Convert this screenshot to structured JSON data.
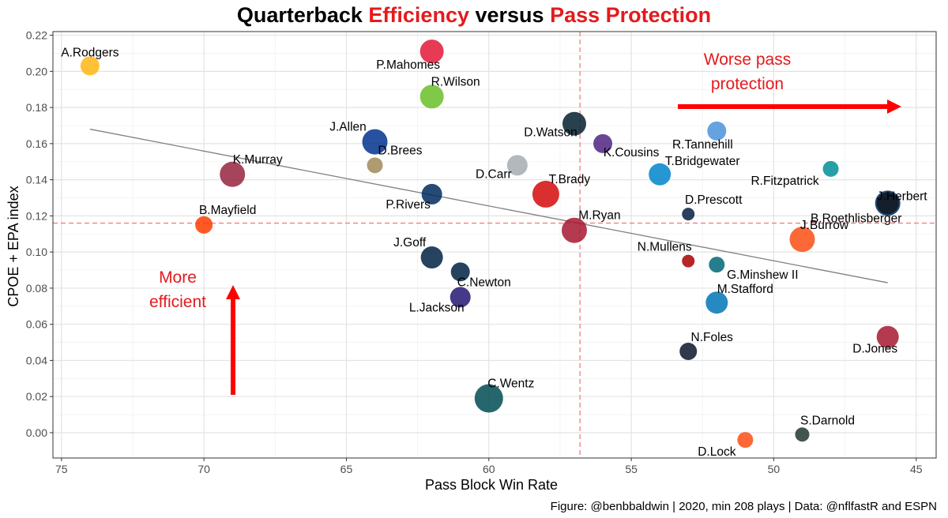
{
  "title": {
    "part1": "Quarterback ",
    "part2": "Efficiency",
    "part3": " versus ",
    "part4": "Pass Protection"
  },
  "caption": "Figure: @benbbaldwin | 2020, min 208 plays | Data: @nflfastR and ESPN",
  "chart_data": {
    "type": "scatter",
    "title": "Quarterback Efficiency versus Pass Protection",
    "xlabel": "Pass Block Win Rate",
    "ylabel": "CPOE + EPA index",
    "x_reversed": true,
    "xlim": [
      75.3,
      44.3
    ],
    "ylim": [
      -0.014,
      0.222
    ],
    "x_ticks": [
      75,
      70,
      65,
      60,
      55,
      50,
      45
    ],
    "y_ticks": [
      "0.00",
      "0.02",
      "0.04",
      "0.06",
      "0.08",
      "0.10",
      "0.12",
      "0.14",
      "0.16",
      "0.18",
      "0.20",
      "0.22"
    ],
    "grid": true,
    "ref_lines": {
      "vertical_x": 56.8,
      "horizontal_y": 0.116,
      "color": "#f08080"
    },
    "trend_line": {
      "x": [
        74,
        46
      ],
      "y": [
        0.168,
        0.083
      ],
      "color": "#808080"
    },
    "points": [
      {
        "name": "A.Rodgers",
        "x": 74.0,
        "y": 0.203,
        "r": 12,
        "color": "#ffb612",
        "label_dx": 0,
        "label_dy": -12
      },
      {
        "name": "P.Mahomes",
        "x": 62.0,
        "y": 0.211,
        "r": 15,
        "color": "#e31837",
        "label_dx": -30,
        "label_dy": 22
      },
      {
        "name": "R.Wilson",
        "x": 62.0,
        "y": 0.186,
        "r": 15,
        "color": "#69be28",
        "label_dx": 30,
        "label_dy": -14
      },
      {
        "name": "J.Allen",
        "x": 64.0,
        "y": 0.161,
        "r": 16,
        "color": "#00338d",
        "label_dx": -34,
        "label_dy": -14
      },
      {
        "name": "D.Brees",
        "x": 64.0,
        "y": 0.148,
        "r": 10,
        "color": "#9f8958",
        "label_dx": 32,
        "label_dy": -14
      },
      {
        "name": "K.Murray",
        "x": 69.0,
        "y": 0.143,
        "r": 16,
        "color": "#97233f",
        "label_dx": 32,
        "label_dy": -14
      },
      {
        "name": "B.Mayfield",
        "x": 70.0,
        "y": 0.115,
        "r": 11,
        "color": "#ff3c00",
        "label_dx": 30,
        "label_dy": -14
      },
      {
        "name": "D.Watson",
        "x": 57.0,
        "y": 0.171,
        "r": 15,
        "color": "#03202f",
        "label_dx": -30,
        "label_dy": 16
      },
      {
        "name": "K.Cousins",
        "x": 56.0,
        "y": 0.16,
        "r": 12,
        "color": "#4f2683",
        "label_dx": 36,
        "label_dy": 16
      },
      {
        "name": "D.Carr",
        "x": 59.0,
        "y": 0.148,
        "r": 13,
        "color": "#a5acaf",
        "label_dx": -30,
        "label_dy": 16
      },
      {
        "name": "T.Brady",
        "x": 58.0,
        "y": 0.132,
        "r": 17,
        "color": "#d50a0a",
        "label_dx": 30,
        "label_dy": -14
      },
      {
        "name": "P.Rivers",
        "x": 62.0,
        "y": 0.132,
        "r": 13,
        "color": "#002c5f",
        "label_dx": -30,
        "label_dy": 18
      },
      {
        "name": "M.Ryan",
        "x": 57.0,
        "y": 0.112,
        "r": 16,
        "color": "#a71930",
        "label_dx": 32,
        "label_dy": -14
      },
      {
        "name": "J.Goff",
        "x": 62.0,
        "y": 0.097,
        "r": 14,
        "color": "#002244",
        "label_dx": -28,
        "label_dy": -14
      },
      {
        "name": "C.Newton",
        "x": 61.0,
        "y": 0.089,
        "r": 12,
        "color": "#002244",
        "label_dx": 30,
        "label_dy": 18
      },
      {
        "name": "L.Jackson",
        "x": 61.0,
        "y": 0.075,
        "r": 13,
        "color": "#241773",
        "label_dx": -30,
        "label_dy": 18
      },
      {
        "name": "C.Wentz",
        "x": 60.0,
        "y": 0.019,
        "r": 18,
        "color": "#004c54",
        "label_dx": 28,
        "label_dy": -14
      },
      {
        "name": "R.Tannehill",
        "x": 52.0,
        "y": 0.167,
        "r": 12,
        "color": "#4b92db",
        "label_dx": -18,
        "label_dy": 22
      },
      {
        "name": "T.Bridgewater",
        "x": 54.0,
        "y": 0.143,
        "r": 14,
        "color": "#0085ca",
        "label_dx": 54,
        "label_dy": -12
      },
      {
        "name": "R.Fitzpatrick",
        "x": 48.0,
        "y": 0.146,
        "r": 10,
        "color": "#008e97",
        "label_dx": -58,
        "label_dy": 20
      },
      {
        "name": "J.Herbert",
        "x": 46.0,
        "y": 0.127,
        "r": 16,
        "color": "#002a5e",
        "label_dx": 18,
        "label_dy": -4
      },
      {
        "name": "B.Roethlisberger",
        "x": 46.0,
        "y": 0.127,
        "r": 14,
        "color": "#101820",
        "label_dx": -40,
        "label_dy": 24
      },
      {
        "name": "D.Prescott",
        "x": 53.0,
        "y": 0.121,
        "r": 8,
        "color": "#041e42",
        "label_dx": 32,
        "label_dy": -13
      },
      {
        "name": "J.Burrow",
        "x": 49.0,
        "y": 0.107,
        "r": 16,
        "color": "#fb4f14",
        "label_dx": 28,
        "label_dy": -13
      },
      {
        "name": "N.Mullens",
        "x": 53.0,
        "y": 0.095,
        "r": 8,
        "color": "#aa0000",
        "label_dx": -30,
        "label_dy": -13
      },
      {
        "name": "G.Minshew II",
        "x": 52.0,
        "y": 0.093,
        "r": 10,
        "color": "#006778",
        "label_dx": 58,
        "label_dy": 18
      },
      {
        "name": "M.Stafford",
        "x": 52.0,
        "y": 0.072,
        "r": 14,
        "color": "#0076b6",
        "label_dx": 36,
        "label_dy": -12
      },
      {
        "name": "N.Foles",
        "x": 53.0,
        "y": 0.045,
        "r": 11,
        "color": "#0b162a",
        "label_dx": 30,
        "label_dy": -13
      },
      {
        "name": "D.Jones",
        "x": 46.0,
        "y": 0.053,
        "r": 14,
        "color": "#a71930",
        "label_dx": -16,
        "label_dy": 20
      },
      {
        "name": "D.Lock",
        "x": 51.0,
        "y": -0.004,
        "r": 10,
        "color": "#fb4f14",
        "label_dx": -36,
        "label_dy": 20
      },
      {
        "name": "S.Darnold",
        "x": 49.0,
        "y": -0.001,
        "r": 9,
        "color": "#203731",
        "label_dx": 32,
        "label_dy": -13
      }
    ],
    "annotations": [
      {
        "id": "efficient",
        "lines": [
          "More",
          "efficient"
        ],
        "color": "#e41a1c"
      },
      {
        "id": "protection",
        "lines": [
          "Worse pass",
          "protection"
        ],
        "color": "#e41a1c"
      }
    ]
  }
}
